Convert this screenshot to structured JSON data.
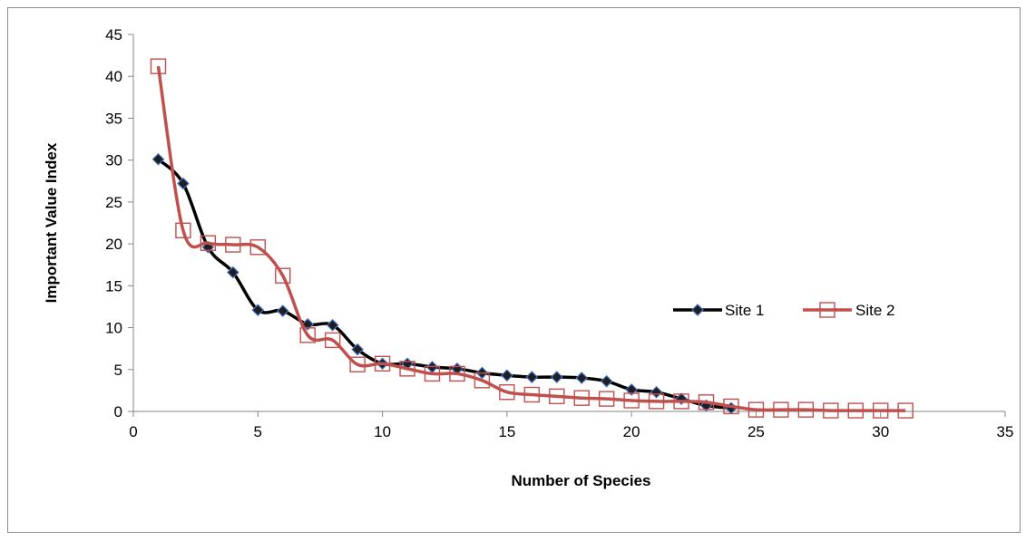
{
  "chart_data": {
    "type": "scatter",
    "xlabel": "Number of Species",
    "ylabel": "Important Value Index",
    "xlim": [
      0,
      35
    ],
    "ylim": [
      0,
      45
    ],
    "x_ticks": [
      0,
      5,
      10,
      15,
      20,
      25,
      30,
      35
    ],
    "y_ticks": [
      0,
      5,
      10,
      15,
      20,
      25,
      30,
      35,
      40,
      45
    ],
    "grid": false,
    "smoothed_lines": true,
    "legend_position": "right",
    "series": [
      {
        "name": "Site 1",
        "color": "#000000",
        "marker": "diamond",
        "marker_fill": "#1f1f1f",
        "marker_edge": "#4472c4",
        "x": [
          1,
          2,
          3,
          4,
          5,
          6,
          7,
          8,
          9,
          10,
          11,
          12,
          13,
          14,
          15,
          16,
          17,
          18,
          19,
          20,
          21,
          22,
          23,
          24
        ],
        "y": [
          30.1,
          27.2,
          19.6,
          16.6,
          12.1,
          12.0,
          10.4,
          10.3,
          7.4,
          5.7,
          5.7,
          5.3,
          5.1,
          4.6,
          4.3,
          4.1,
          4.1,
          4.0,
          3.6,
          2.6,
          2.3,
          1.5,
          0.7,
          0.4
        ]
      },
      {
        "name": "Site 2",
        "color": "#c0504d",
        "marker": "square",
        "marker_fill": "none",
        "marker_edge": "#c0504d",
        "x": [
          1,
          2,
          3,
          4,
          5,
          6,
          7,
          8,
          9,
          10,
          11,
          12,
          13,
          14,
          15,
          16,
          17,
          18,
          19,
          20,
          21,
          22,
          23,
          24,
          25,
          26,
          27,
          28,
          29,
          30,
          31
        ],
        "y": [
          41.2,
          21.6,
          20.1,
          19.9,
          19.6,
          16.2,
          9.1,
          8.5,
          5.6,
          5.7,
          5.1,
          4.5,
          4.5,
          3.7,
          2.3,
          2.0,
          1.8,
          1.6,
          1.5,
          1.3,
          1.2,
          1.2,
          1.1,
          0.6,
          0.2,
          0.2,
          0.2,
          0.1,
          0.1,
          0.1,
          0.1
        ]
      }
    ]
  }
}
